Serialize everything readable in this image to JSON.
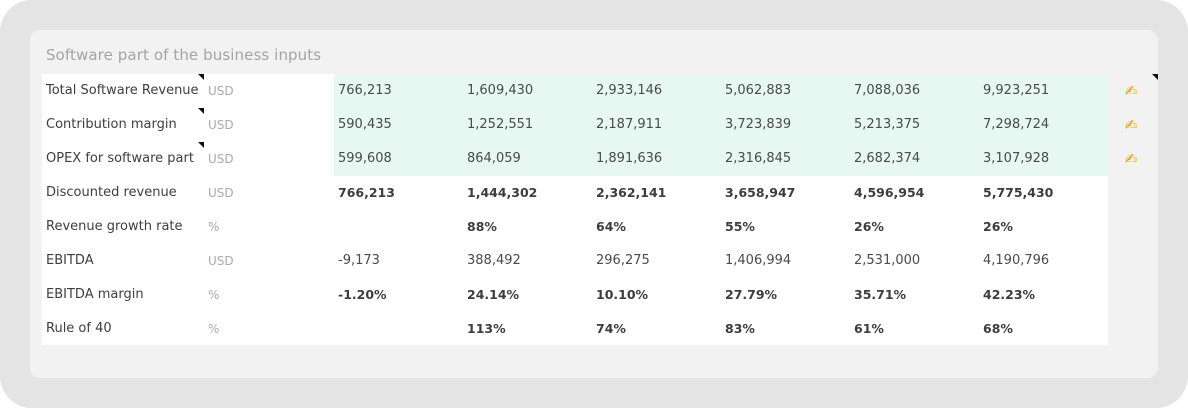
{
  "panel": {
    "title": "Software part of the business inputs"
  },
  "rows": [
    {
      "label": "Total Software Revenue",
      "unit": "USD",
      "values": [
        "766,213",
        "1,609,430",
        "2,933,146",
        "5,062,883",
        "7,088,036",
        "9,923,251"
      ],
      "editable": true
    },
    {
      "label": "Contribution margin",
      "unit": "USD",
      "values": [
        "590,435",
        "1,252,551",
        "2,187,911",
        "3,723,839",
        "5,213,375",
        "7,298,724"
      ],
      "editable": true
    },
    {
      "label": "OPEX for software part",
      "unit": "USD",
      "values": [
        "599,608",
        "864,059",
        "1,891,636",
        "2,316,845",
        "2,682,374",
        "3,107,928"
      ],
      "editable": true
    },
    {
      "label": "Discounted revenue",
      "unit": "USD",
      "values": [
        "766,213",
        "1,444,302",
        "2,362,141",
        "3,658,947",
        "4,596,954",
        "5,775,430"
      ],
      "bold": true
    },
    {
      "label": "Revenue growth rate",
      "unit": "%",
      "values": [
        "",
        "88%",
        "64%",
        "55%",
        "26%",
        "26%"
      ],
      "bold": true
    },
    {
      "label": "EBITDA",
      "unit": "USD",
      "values": [
        "-9,173",
        "388,492",
        "296,275",
        "1,406,994",
        "2,531,000",
        "4,190,796"
      ]
    },
    {
      "label": "EBITDA margin",
      "unit": "%",
      "values": [
        "-1.20%",
        "24.14%",
        "10.10%",
        "27.79%",
        "35.71%",
        "42.23%"
      ],
      "bold": true
    },
    {
      "label": "Rule of 40",
      "unit": "%",
      "values": [
        "",
        "113%",
        "74%",
        "83%",
        "61%",
        "68%"
      ],
      "bold": true
    }
  ],
  "icons": {
    "edit": "writing-hand-icon",
    "edit_glyph": "✍",
    "edit_color": "#e2a10d"
  },
  "colors": {
    "input_bg": "#e6f8f1",
    "panel_bg": "#f2f2f2",
    "outer_bg": "#e4e4e4"
  }
}
